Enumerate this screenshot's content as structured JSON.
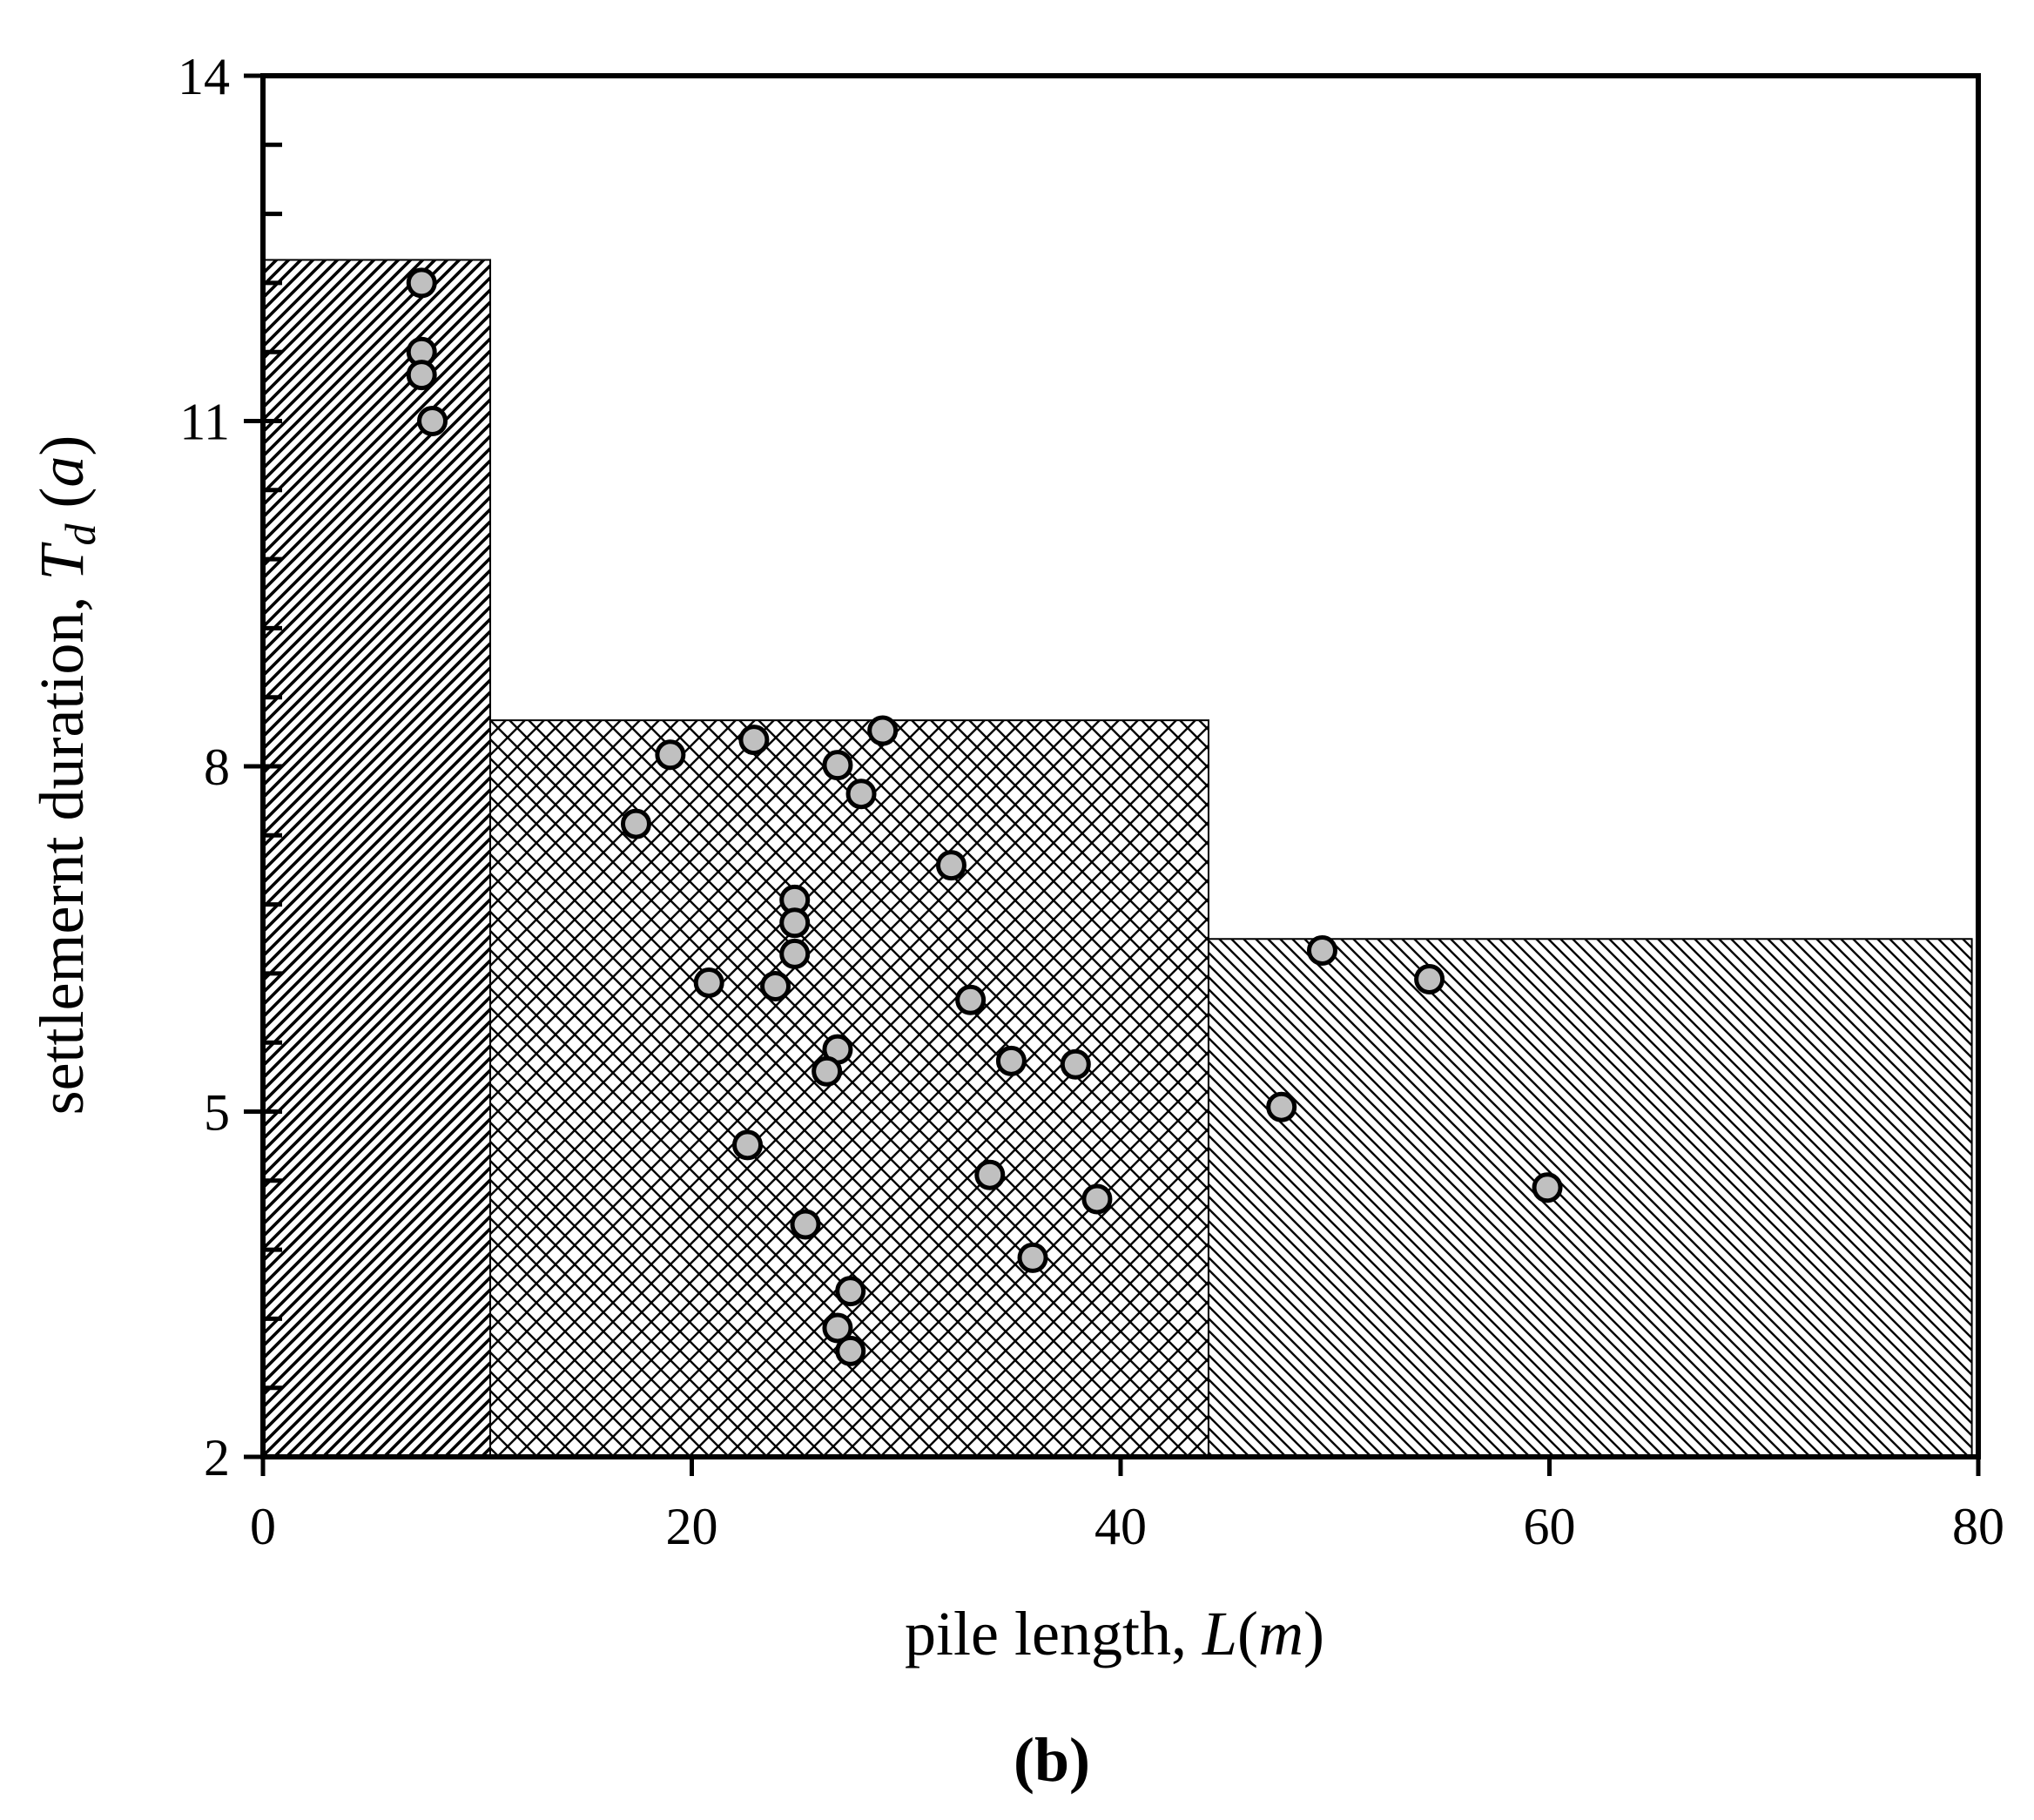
{
  "chart_data": {
    "type": "scatter",
    "panel_label": "(b)",
    "xlabel": {
      "prefix": "pile length, ",
      "var": "L",
      "paren_open": "(",
      "unit": "m",
      "paren_close": ")"
    },
    "ylabel": {
      "prefix": "settlemernt duration, ",
      "var": "T",
      "sub": "d",
      "suffix": " (",
      "unit": "a",
      "close": ")"
    },
    "xlim": [
      0,
      80
    ],
    "ylim": [
      2,
      14
    ],
    "x_ticks": [
      "0",
      "20",
      "40",
      "60",
      "80"
    ],
    "y_ticks": [
      "2",
      "5",
      "8",
      "11",
      "14"
    ],
    "y_minor_step": 0.6,
    "grid": false,
    "regions": [
      {
        "name": "short-pile-zone",
        "pattern": "dense-diagonal",
        "x": [
          0,
          10.6
        ],
        "y_top": 12.4
      },
      {
        "name": "medium-pile-zone",
        "pattern": "crosshatch",
        "x": [
          10.6,
          44.1
        ],
        "y_top": 8.4
      },
      {
        "name": "long-pile-zone",
        "pattern": "diagonal",
        "x": [
          44.1,
          79.7
        ],
        "y_top": 6.5
      }
    ],
    "series": [
      {
        "marker_fill": "#c0c0c0",
        "marker_stroke": "#000000",
        "points": [
          [
            7.4,
            12.2
          ],
          [
            7.4,
            11.6
          ],
          [
            7.4,
            11.4
          ],
          [
            7.9,
            11.0
          ],
          [
            19.0,
            8.1
          ],
          [
            22.9,
            8.23
          ],
          [
            28.9,
            8.31
          ],
          [
            26.8,
            8.01
          ],
          [
            27.9,
            7.76
          ],
          [
            17.4,
            7.5
          ],
          [
            32.1,
            7.14
          ],
          [
            24.8,
            6.84
          ],
          [
            24.8,
            6.64
          ],
          [
            24.8,
            6.37
          ],
          [
            20.8,
            6.12
          ],
          [
            23.9,
            6.09
          ],
          [
            33.0,
            5.97
          ],
          [
            26.8,
            5.54
          ],
          [
            26.3,
            5.35
          ],
          [
            34.9,
            5.44
          ],
          [
            37.9,
            5.41
          ],
          [
            22.6,
            4.71
          ],
          [
            33.9,
            4.45
          ],
          [
            38.9,
            4.24
          ],
          [
            25.3,
            4.02
          ],
          [
            35.9,
            3.73
          ],
          [
            27.4,
            3.44
          ],
          [
            26.8,
            3.12
          ],
          [
            27.4,
            2.92
          ],
          [
            49.4,
            6.4
          ],
          [
            54.4,
            6.15
          ],
          [
            47.5,
            5.04
          ],
          [
            59.9,
            4.34
          ]
        ]
      }
    ]
  }
}
